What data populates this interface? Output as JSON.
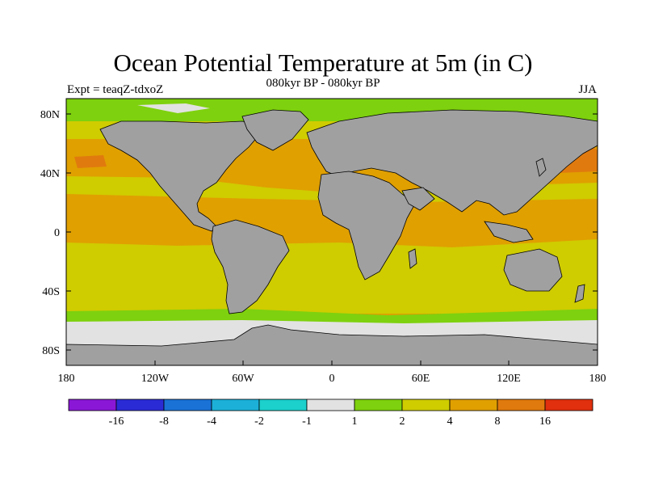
{
  "title": "Ocean Potential Temperature at 5m (in C)",
  "subtitle": "080kyr BP - 080kyr BP",
  "left_label": "Expt = teaqZ-tdxoZ",
  "right_label": "JJA",
  "map": {
    "lat_ticks": [
      "80N",
      "40N",
      "0",
      "40S",
      "80S"
    ],
    "lon_ticks": [
      "180",
      "120W",
      "60W",
      "0",
      "60E",
      "120E",
      "180"
    ],
    "land_color": "#a0a0a0",
    "coast_color": "#000000"
  },
  "colorbar": {
    "colors": [
      "#8a17d6",
      "#2b2bd6",
      "#1a72d6",
      "#1cb0d8",
      "#1cd0cc",
      "#e2e2e2",
      "#7ed10e",
      "#cfcc00",
      "#e0a000",
      "#e07a0e",
      "#e0300e"
    ],
    "labels": [
      "-16",
      "-8",
      "-4",
      "-2",
      "-1",
      "1",
      "2",
      "4",
      "8",
      "16"
    ]
  }
}
